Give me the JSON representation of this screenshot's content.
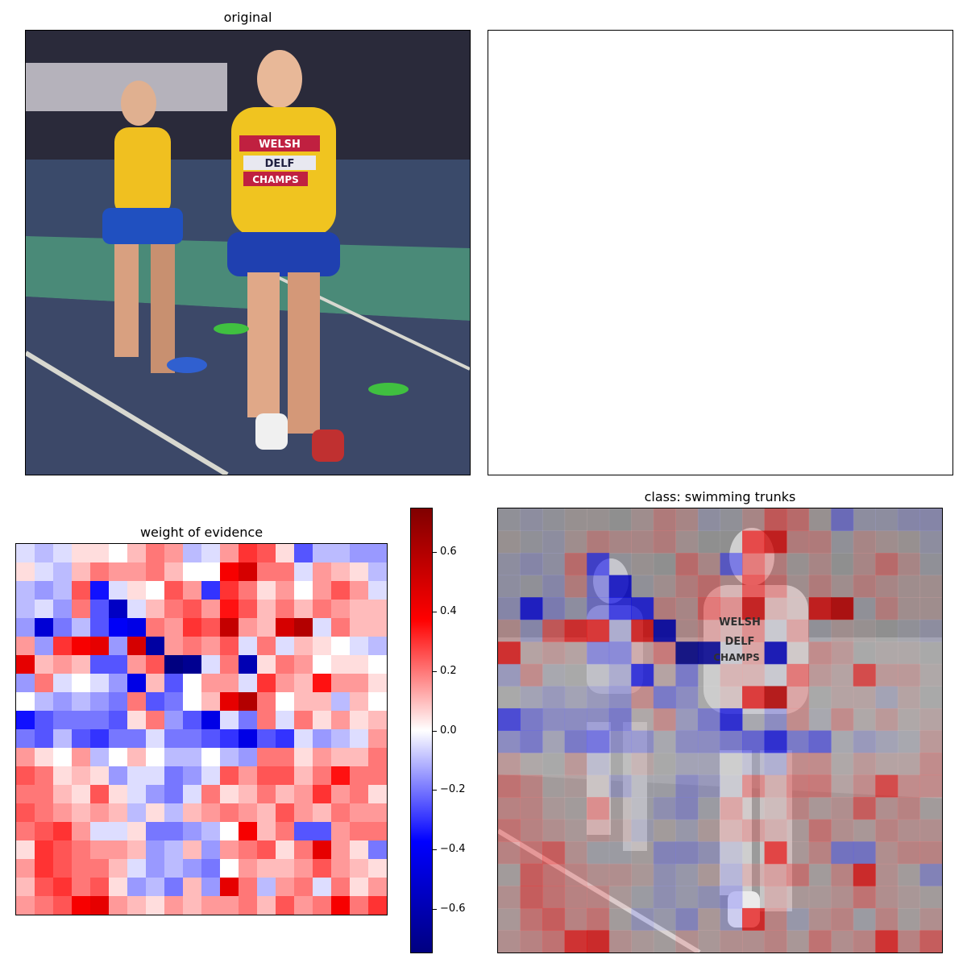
{
  "panels": {
    "original_title": "original",
    "woe_title": "weight of evidence",
    "overlay_title": "class: swimming trunks",
    "jersey_text": [
      "WELSH",
      "DELF",
      "CHAMPS"
    ]
  },
  "colors": {
    "positive_max": "#800000",
    "positive": "#ff0000",
    "neutral": "#ffffff",
    "negative": "#0000ff",
    "negative_max": "#000080"
  },
  "chart_data": {
    "type": "heatmap",
    "title": "weight of evidence",
    "colormap": "seismic",
    "vmin": -0.75,
    "vmax": 0.75,
    "colorbar_ticks": [
      "0.6",
      "0.4",
      "0.2",
      "0.0",
      "−0.2",
      "−0.4",
      "−0.6"
    ],
    "rows": 20,
    "cols": 20,
    "values": [
      [
        -0.05,
        -0.1,
        -0.05,
        0.05,
        0.05,
        0.0,
        0.1,
        0.2,
        0.15,
        -0.1,
        -0.05,
        0.15,
        0.3,
        0.25,
        0.05,
        -0.25,
        -0.1,
        -0.1,
        -0.15,
        -0.15
      ],
      [
        0.05,
        -0.05,
        -0.1,
        0.1,
        0.2,
        0.15,
        0.15,
        0.2,
        0.1,
        0.0,
        0.0,
        0.4,
        0.5,
        0.2,
        0.2,
        -0.05,
        0.15,
        0.1,
        0.05,
        -0.1
      ],
      [
        -0.1,
        -0.15,
        -0.1,
        0.25,
        -0.35,
        -0.05,
        0.05,
        0.0,
        0.25,
        0.15,
        -0.3,
        0.3,
        0.2,
        0.05,
        0.15,
        0.0,
        0.15,
        0.25,
        0.15,
        -0.05
      ],
      [
        -0.1,
        -0.05,
        -0.15,
        0.2,
        -0.25,
        -0.55,
        -0.05,
        0.1,
        0.2,
        0.25,
        0.15,
        0.35,
        0.25,
        0.1,
        0.2,
        0.1,
        0.2,
        0.15,
        0.1,
        0.1
      ],
      [
        -0.15,
        -0.5,
        -0.2,
        -0.1,
        -0.25,
        -0.4,
        -0.45,
        0.2,
        0.15,
        0.3,
        0.25,
        0.55,
        0.15,
        0.1,
        0.5,
        0.6,
        -0.05,
        0.2,
        0.1,
        0.1
      ],
      [
        0.15,
        -0.15,
        0.3,
        0.4,
        0.45,
        -0.15,
        0.5,
        -0.65,
        0.15,
        0.2,
        0.15,
        0.25,
        -0.05,
        0.2,
        -0.05,
        0.1,
        0.05,
        0.0,
        -0.05,
        -0.1
      ],
      [
        0.45,
        0.1,
        0.15,
        0.1,
        -0.25,
        -0.25,
        0.15,
        0.25,
        -0.75,
        -0.7,
        -0.05,
        0.2,
        -0.6,
        0.05,
        0.2,
        0.15,
        0.0,
        0.05,
        0.05,
        0.0
      ],
      [
        -0.15,
        0.2,
        -0.05,
        0.0,
        -0.05,
        -0.15,
        -0.45,
        0.1,
        -0.25,
        0.0,
        0.15,
        0.15,
        -0.05,
        0.3,
        0.15,
        0.1,
        0.35,
        0.15,
        0.15,
        0.05
      ],
      [
        0.0,
        -0.1,
        -0.15,
        -0.1,
        -0.15,
        -0.2,
        0.2,
        -0.25,
        -0.2,
        0.0,
        0.1,
        0.45,
        0.6,
        0.2,
        0.0,
        0.1,
        0.1,
        -0.1,
        0.1,
        0.0
      ],
      [
        -0.35,
        -0.25,
        -0.2,
        -0.2,
        -0.2,
        -0.25,
        0.05,
        0.2,
        -0.15,
        -0.25,
        -0.45,
        -0.05,
        -0.2,
        0.2,
        -0.05,
        0.2,
        0.05,
        0.15,
        0.05,
        0.1
      ],
      [
        -0.2,
        -0.25,
        -0.1,
        -0.25,
        -0.3,
        -0.2,
        -0.2,
        -0.05,
        -0.2,
        -0.2,
        -0.25,
        -0.3,
        -0.45,
        -0.25,
        -0.3,
        -0.05,
        -0.15,
        -0.1,
        -0.05,
        0.15
      ],
      [
        0.15,
        0.05,
        0.0,
        0.15,
        -0.1,
        0.0,
        0.1,
        0.0,
        -0.1,
        -0.1,
        0.0,
        -0.1,
        -0.15,
        0.2,
        0.2,
        0.05,
        0.15,
        0.1,
        0.1,
        0.2
      ],
      [
        0.25,
        0.2,
        0.05,
        0.1,
        0.05,
        -0.15,
        -0.05,
        -0.05,
        -0.2,
        -0.15,
        -0.05,
        0.25,
        0.15,
        0.25,
        0.25,
        0.1,
        0.2,
        0.35,
        0.2,
        0.2
      ],
      [
        0.2,
        0.2,
        0.1,
        0.05,
        0.25,
        0.05,
        -0.05,
        -0.15,
        -0.2,
        -0.05,
        0.2,
        0.05,
        0.1,
        0.2,
        0.1,
        0.15,
        0.3,
        0.15,
        0.2,
        0.05
      ],
      [
        0.25,
        0.2,
        0.15,
        0.1,
        0.15,
        0.1,
        -0.1,
        0.05,
        -0.1,
        0.1,
        0.15,
        0.2,
        0.15,
        0.1,
        0.25,
        0.15,
        0.1,
        0.2,
        0.15,
        0.15
      ],
      [
        0.2,
        0.25,
        0.3,
        0.15,
        -0.05,
        -0.05,
        0.05,
        -0.2,
        -0.2,
        -0.15,
        -0.1,
        0.0,
        0.4,
        0.1,
        0.2,
        -0.25,
        -0.25,
        0.15,
        0.2,
        0.2
      ],
      [
        0.05,
        0.3,
        0.25,
        0.2,
        0.15,
        0.15,
        0.1,
        -0.15,
        -0.1,
        0.1,
        -0.15,
        0.15,
        0.2,
        0.25,
        0.05,
        0.2,
        0.45,
        0.15,
        0.05,
        -0.2
      ],
      [
        0.15,
        0.3,
        0.25,
        0.2,
        0.2,
        0.1,
        -0.05,
        -0.15,
        -0.1,
        -0.15,
        -0.2,
        0.0,
        0.15,
        0.1,
        0.1,
        0.15,
        0.25,
        0.15,
        0.1,
        0.05
      ],
      [
        0.1,
        0.25,
        0.3,
        0.2,
        0.25,
        0.05,
        -0.15,
        -0.1,
        -0.2,
        0.1,
        -0.15,
        0.45,
        0.2,
        -0.1,
        0.15,
        0.2,
        -0.05,
        0.2,
        0.05,
        0.15
      ],
      [
        0.15,
        0.2,
        0.25,
        0.4,
        0.45,
        0.15,
        0.1,
        0.05,
        0.15,
        0.1,
        0.15,
        0.15,
        0.2,
        0.1,
        0.25,
        0.15,
        0.2,
        0.4,
        0.2,
        0.3
      ]
    ]
  }
}
